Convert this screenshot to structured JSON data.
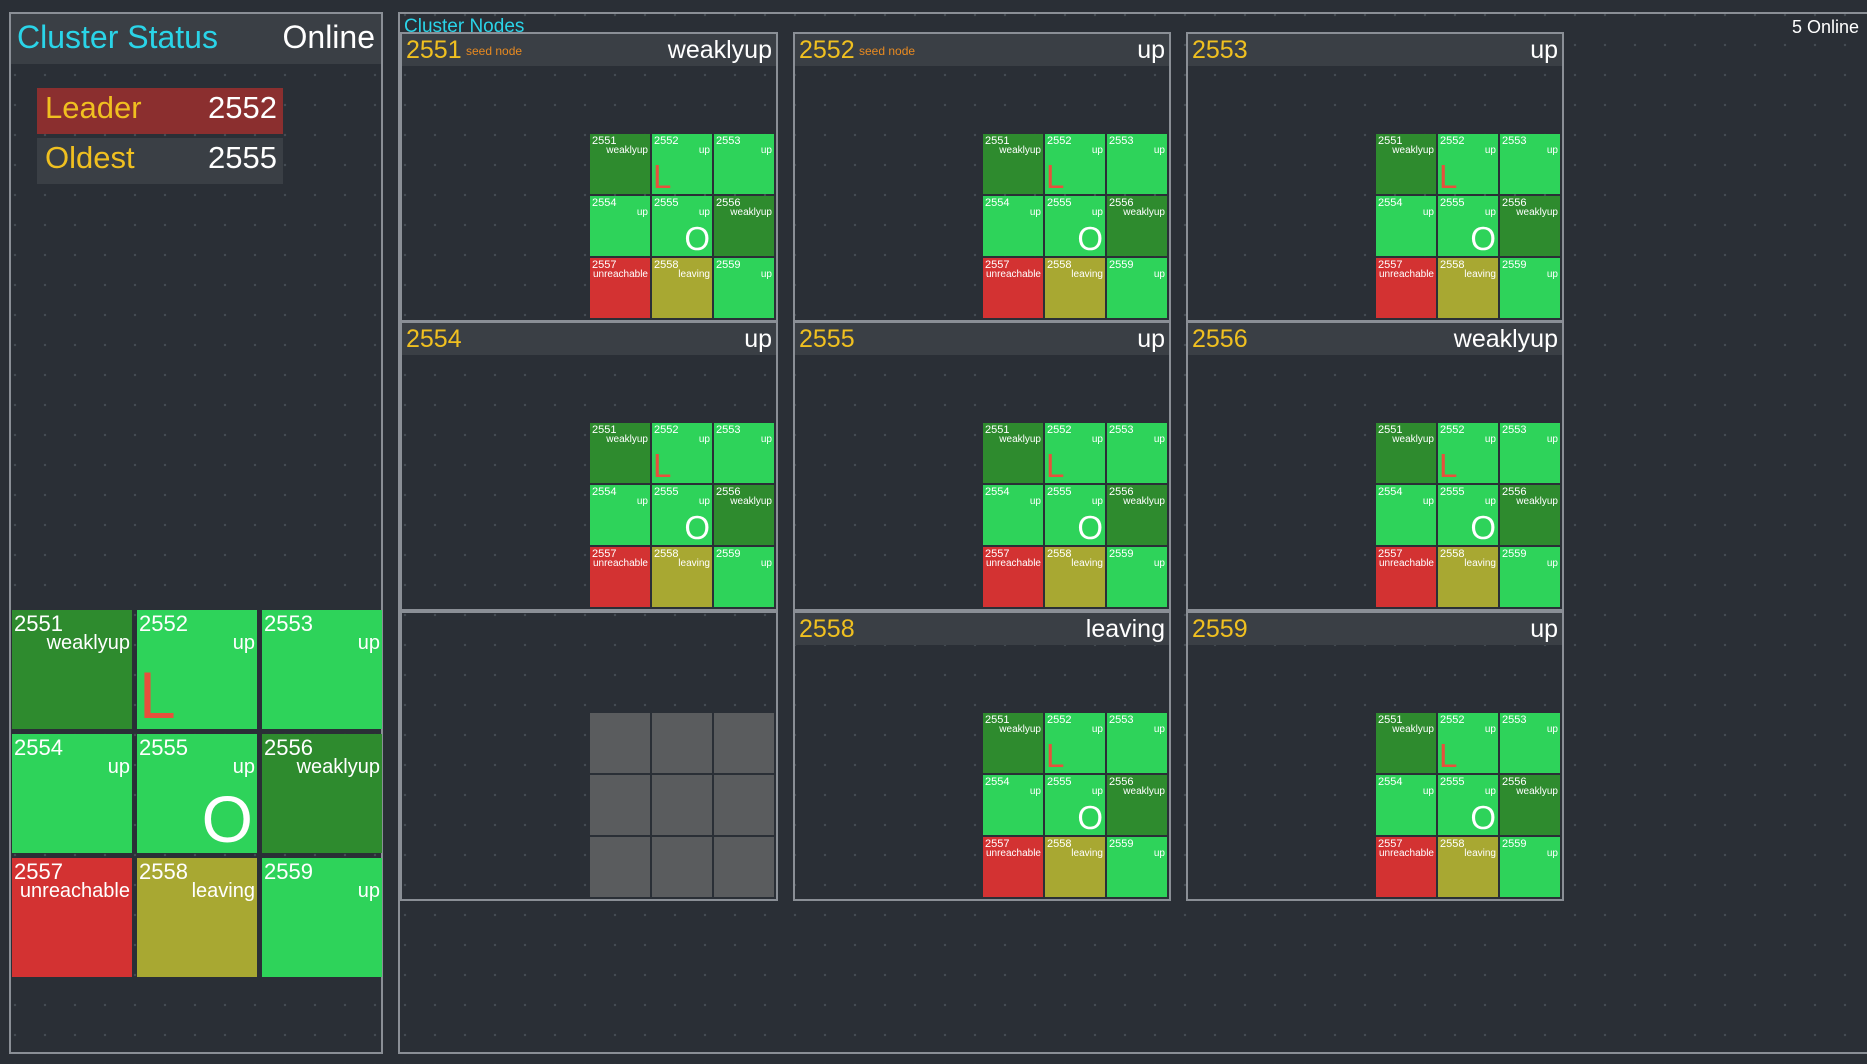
{
  "status_panel": {
    "title": "Cluster Status",
    "state": "Online",
    "leader_label": "Leader",
    "leader_value": "2552",
    "oldest_label": "Oldest",
    "oldest_value": "2555"
  },
  "nodes_panel": {
    "title": "Cluster Nodes",
    "online_count": "5 Online"
  },
  "members": [
    {
      "id": "2551",
      "status": "weaklyup",
      "color": "#2e8b2e",
      "mark": ""
    },
    {
      "id": "2552",
      "status": "up",
      "color": "#2ed35a",
      "mark": "L"
    },
    {
      "id": "2553",
      "status": "up",
      "color": "#2ed35a",
      "mark": ""
    },
    {
      "id": "2554",
      "status": "up",
      "color": "#2ed35a",
      "mark": ""
    },
    {
      "id": "2555",
      "status": "up",
      "color": "#2ed35a",
      "mark": "O"
    },
    {
      "id": "2556",
      "status": "weaklyup",
      "color": "#2e8b2e",
      "mark": ""
    },
    {
      "id": "2557",
      "status": "unreachable",
      "color": "#d33232",
      "mark": ""
    },
    {
      "id": "2558",
      "status": "leaving",
      "color": "#a8a832",
      "mark": ""
    },
    {
      "id": "2559",
      "status": "up",
      "color": "#2ed35a",
      "mark": ""
    }
  ],
  "node_cards": [
    {
      "id": "2551",
      "seed_label": "seed node",
      "status": "weaklyup",
      "has_grid": true
    },
    {
      "id": "2552",
      "seed_label": "seed node",
      "status": "up",
      "has_grid": true
    },
    {
      "id": "2553",
      "seed_label": "",
      "status": "up",
      "has_grid": true
    },
    {
      "id": "2554",
      "seed_label": "",
      "status": "up",
      "has_grid": true
    },
    {
      "id": "2555",
      "seed_label": "",
      "status": "up",
      "has_grid": true
    },
    {
      "id": "2556",
      "seed_label": "",
      "status": "weaklyup",
      "has_grid": true
    },
    {
      "id": "",
      "seed_label": "",
      "status": "",
      "has_grid": false
    },
    {
      "id": "2558",
      "seed_label": "",
      "status": "leaving",
      "has_grid": true
    },
    {
      "id": "2559",
      "seed_label": "",
      "status": "up",
      "has_grid": true
    }
  ],
  "colors": {
    "accent_title": "#2ad4e8",
    "node_id": "#f0c020",
    "seed": "#e88a20",
    "leader_row": "#8b2f2f",
    "oldest_row": "#3a3f45",
    "empty_tile": "#5a5c5e"
  }
}
